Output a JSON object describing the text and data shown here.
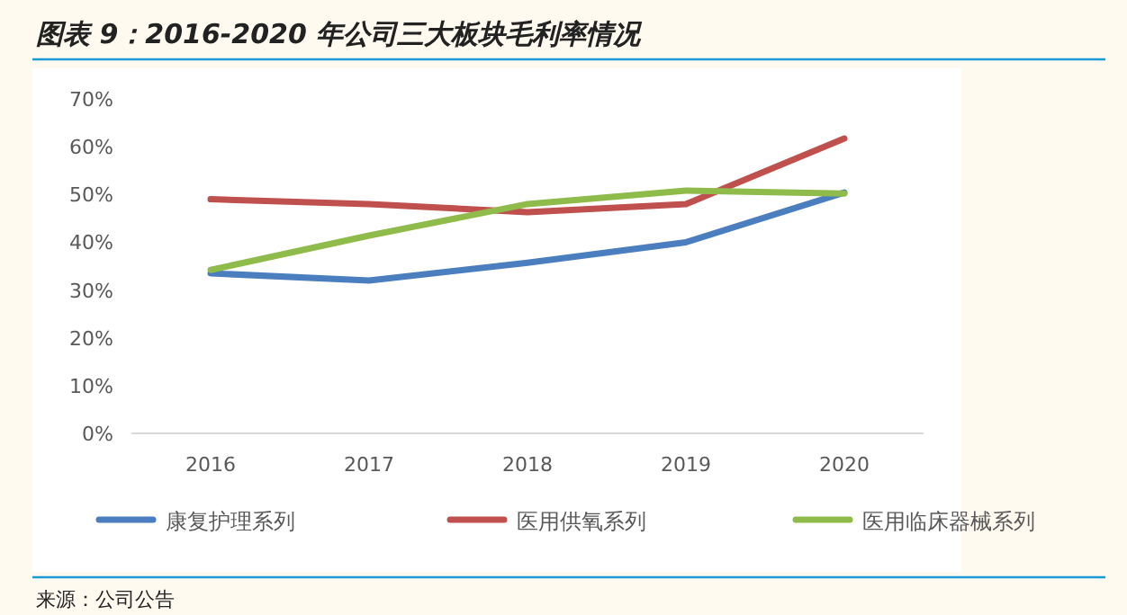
{
  "chart_data": {
    "type": "line",
    "title": "图表 9：2016-2020 年公司三大板块毛利率情况",
    "categories": [
      "2016",
      "2017",
      "2018",
      "2019",
      "2020"
    ],
    "series": [
      {
        "name": "康复护理系列",
        "color": "#4a7ebf",
        "values": [
          33.5,
          32,
          35.7,
          40,
          50.4
        ]
      },
      {
        "name": "医用供氧系列",
        "color": "#c0504d",
        "values": [
          49,
          48,
          46.3,
          48,
          61.7
        ]
      },
      {
        "name": "医用临床器械系列",
        "color": "#8fbb4b",
        "values": [
          34.2,
          41.4,
          48,
          50.8,
          50.2
        ]
      }
    ],
    "ylim": [
      0,
      70
    ],
    "yticks": [
      {
        "value": 0,
        "label": "0%"
      },
      {
        "value": 10,
        "label": "10%"
      },
      {
        "value": 20,
        "label": "20%"
      },
      {
        "value": 30,
        "label": "30%"
      },
      {
        "value": 40,
        "label": "40%"
      },
      {
        "value": 50,
        "label": "50%"
      },
      {
        "value": 60,
        "label": "60%"
      },
      {
        "value": 70,
        "label": "70%"
      }
    ],
    "grid": false,
    "legend": "bottom",
    "marker": "none",
    "line_style": "solid",
    "annotations": [
      "来源：公司公告"
    ]
  }
}
